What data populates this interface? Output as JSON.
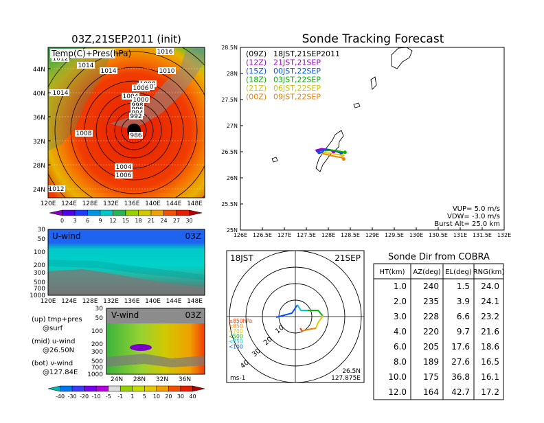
{
  "colors": {
    "purple": "#a000c8",
    "blue": "#0050f0",
    "cyan": "#00c8c8",
    "green": "#00b400",
    "yellow": "#e6c800",
    "orange": "#f08000",
    "red": "#f03c00",
    "ytext": "#c8c800"
  },
  "left_top": {
    "title": "03Z,21SEP2011 (init)",
    "label": "Temp(C)+Pres(hPa)",
    "y_ticks": [
      "44N",
      "40N",
      "36N",
      "32N",
      "28N",
      "24N"
    ],
    "x_ticks": [
      "120E",
      "124E",
      "128E",
      "132E",
      "136E",
      "140E",
      "144E",
      "148E"
    ],
    "isobars": [
      {
        "t": "1016"
      },
      {
        "t": "1012"
      },
      {
        "t": "1014"
      },
      {
        "t": "1014"
      },
      {
        "t": "1010"
      },
      {
        "t": "1014"
      },
      {
        "t": "1008"
      },
      {
        "t": "1010"
      },
      {
        "t": "1006"
      },
      {
        "t": "1014"
      },
      {
        "t": "1004"
      },
      {
        "t": "1000"
      },
      {
        "t": "998"
      },
      {
        "t": "996"
      },
      {
        "t": "994"
      },
      {
        "t": "992"
      },
      {
        "t": "1008"
      },
      {
        "t": "986"
      },
      {
        "t": "1004"
      },
      {
        "t": "1006"
      },
      {
        "t": "1012"
      }
    ],
    "colorbar_ticks": [
      "0",
      "3",
      "6",
      "9",
      "12",
      "15",
      "18",
      "21",
      "24",
      "27",
      "30"
    ]
  },
  "uwind": {
    "label": "U-wind",
    "time": "03Z",
    "y_ticks": [
      "30",
      "50",
      "100",
      "200",
      "300",
      "500",
      "700",
      "1000"
    ],
    "x_ticks": [
      "120E",
      "124E",
      "128E",
      "132E",
      "136E",
      "140E",
      "144E",
      "148E"
    ]
  },
  "vwind": {
    "label": "V-wind",
    "time": "03Z",
    "y_ticks": [
      "30",
      "50",
      "100",
      "200",
      "300",
      "500",
      "700",
      "1000"
    ],
    "x_ticks": [
      "24N",
      "28N",
      "32N",
      "36N"
    ]
  },
  "legend_notes": [
    {
      "a": "(up) tmp+pres",
      "b": "@surf"
    },
    {
      "a": "(mid) u-wind",
      "b": "@26.50N"
    },
    {
      "a": "(bot) v-wind",
      "b": "@127.84E"
    }
  ],
  "bottom_colorbar_ticks": [
    "-40",
    "-30",
    "-20",
    "-10",
    "-5",
    "-1",
    "1",
    "5",
    "10",
    "20",
    "30",
    "40"
  ],
  "tracking": {
    "title": "Sonde Tracking Forecast",
    "y_ticks": [
      "28.5N",
      "28N",
      "27.5N",
      "27N",
      "26.5N",
      "26N",
      "25.5N",
      "25N"
    ],
    "x_ticks": [
      "126E",
      "126.5E",
      "127E",
      "127.5E",
      "128E",
      "128.5E",
      "129E",
      "129.5E",
      "130E",
      "130.5E",
      "131E",
      "131.5E",
      "132E"
    ],
    "legend": [
      {
        "z": "(09Z)",
        "t": "18JST,21SEP2011",
        "c": "#000000"
      },
      {
        "z": "(12Z)",
        "t": "21JST,21SEP",
        "c": "#a000c8"
      },
      {
        "z": "(15Z)",
        "t": "00JST,22SEP",
        "c": "#0050f0"
      },
      {
        "z": "(18Z)",
        "t": "03JST,22SEP",
        "c": "#00b400"
      },
      {
        "z": "(21Z)",
        "t": "06JST,22SEP",
        "c": "#c8c800"
      },
      {
        "z": "(00Z)",
        "t": "09JST,22SEP",
        "c": "#f08000"
      }
    ],
    "params": [
      "VUP=  5.0 m/s",
      "VDW= -3.0 m/s",
      "Burst Alt= 25.0 km"
    ]
  },
  "polar": {
    "time": "18JST",
    "date": "21SEP",
    "levels": [
      {
        "t": "≥850hPa",
        "c": "#f03c00"
      },
      {
        "t": "<850",
        "c": "#f08000"
      },
      {
        "t": "<700",
        "c": "#e6c800"
      },
      {
        "t": "<500",
        "c": "#00b400"
      },
      {
        "t": "<250",
        "c": "#00c8c8"
      },
      {
        "t": "<100",
        "c": "#0050f0"
      }
    ],
    "ring_labels": [
      "10",
      "20",
      "30",
      "40"
    ],
    "unit": "ms-1",
    "pos_lat": "26.5N",
    "pos_lon": "127.875E"
  },
  "sonde_table": {
    "title": "Sonde Dir from COBRA",
    "headers": [
      "HT(km)",
      "AZ(deg)",
      "EL(deg)",
      "RNG(km)"
    ],
    "rows": [
      [
        "1.0",
        "240",
        "1.5",
        "24.0"
      ],
      [
        "2.0",
        "235",
        "3.9",
        "24.1"
      ],
      [
        "3.0",
        "228",
        "6.6",
        "23.2"
      ],
      [
        "4.0",
        "220",
        "9.7",
        "21.6"
      ],
      [
        "6.0",
        "205",
        "17.6",
        "18.6"
      ],
      [
        "8.0",
        "189",
        "27.6",
        "16.5"
      ],
      [
        "10.0",
        "175",
        "36.8",
        "16.1"
      ],
      [
        "12.0",
        "164",
        "42.7",
        "17.2"
      ]
    ]
  },
  "chart_data": [
    {
      "type": "heatmap",
      "title": "03Z,21SEP2011 (init)",
      "subtitle": "Temp(C)+Pres(hPa)",
      "x_ticks": [
        "120E",
        "124E",
        "128E",
        "132E",
        "136E",
        "140E",
        "144E",
        "148E"
      ],
      "y_ticks": [
        "24N",
        "28N",
        "32N",
        "36N",
        "40N",
        "44N"
      ],
      "colorbar": [
        0,
        3,
        6,
        9,
        12,
        15,
        18,
        21,
        24,
        27,
        30
      ],
      "isobar_labels": [
        1016,
        1012,
        1014,
        1014,
        1010,
        1014,
        1008,
        1010,
        1006,
        1014,
        1004,
        1000,
        998,
        996,
        994,
        992,
        1008,
        986,
        1004,
        1006,
        1012
      ]
    },
    {
      "type": "heatmap",
      "title": "U-wind",
      "subtitle": "03Z",
      "y_ticks": [
        30,
        50,
        100,
        200,
        300,
        500,
        700,
        1000
      ]
    },
    {
      "type": "heatmap",
      "title": "V-wind",
      "subtitle": "03Z",
      "y_ticks": [
        30,
        50,
        100,
        200,
        300,
        500,
        700,
        1000
      ]
    },
    {
      "type": "line",
      "title": "Sonde Tracking Forecast",
      "x_label": "",
      "y_label": "",
      "xlim": [
        126,
        132
      ],
      "ylim": [
        25,
        28.5
      ],
      "series": [
        {
          "name": "(09Z) 18JST,21SEP2011",
          "x": [
            127.88,
            127.82,
            127.75,
            127.9,
            128.05,
            128.2,
            128.3
          ],
          "y": [
            26.5,
            26.48,
            26.52,
            26.55,
            26.53,
            26.5,
            26.47
          ]
        },
        {
          "name": "(12Z) 21JST,21SEP",
          "x": [
            127.87,
            127.78,
            127.72,
            127.85,
            128.0,
            128.12
          ],
          "y": [
            26.5,
            26.47,
            26.53,
            26.56,
            26.54,
            26.5
          ]
        },
        {
          "name": "(15Z) 00JST,22SEP",
          "x": [
            127.9,
            127.8,
            127.75,
            127.95,
            128.15,
            128.3
          ],
          "y": [
            26.51,
            26.47,
            26.5,
            26.55,
            26.52,
            26.47
          ]
        },
        {
          "name": "(18Z) 03JST,22SEP",
          "x": [
            127.92,
            128.1,
            128.25,
            128.38
          ],
          "y": [
            26.52,
            26.53,
            26.51,
            26.49
          ]
        },
        {
          "name": "(21Z) 06JST,22SEP",
          "x": [
            127.88,
            128.05,
            128.2,
            128.32
          ],
          "y": [
            26.49,
            26.47,
            26.45,
            26.43
          ]
        },
        {
          "name": "(00Z) 09JST,22SEP",
          "x": [
            127.85,
            128.0,
            128.15,
            128.3,
            128.35
          ],
          "y": [
            26.47,
            26.44,
            26.41,
            26.39,
            26.36
          ]
        }
      ]
    },
    {
      "type": "line",
      "title": "",
      "x_label": "",
      "y_label": "",
      "unit": "ms-1"
    },
    {
      "type": "table",
      "title": "Sonde Dir from COBRA",
      "headers": [
        "HT(km)",
        "AZ(deg)",
        "EL(deg)",
        "RNG(km)"
      ],
      "rows": [
        [
          "1.0",
          "240",
          "1.5",
          "24.0"
        ],
        [
          "2.0",
          "235",
          "3.9",
          "24.1"
        ],
        [
          "3.0",
          "228",
          "6.6",
          "23.2"
        ],
        [
          "4.0",
          "220",
          "9.7",
          "21.6"
        ],
        [
          "6.0",
          "205",
          "17.6",
          "18.6"
        ],
        [
          "8.0",
          "189",
          "27.6",
          "16.5"
        ],
        [
          "10.0",
          "175",
          "36.8",
          "16.1"
        ],
        [
          "12.0",
          "164",
          "42.7",
          "17.2"
        ]
      ]
    }
  ]
}
